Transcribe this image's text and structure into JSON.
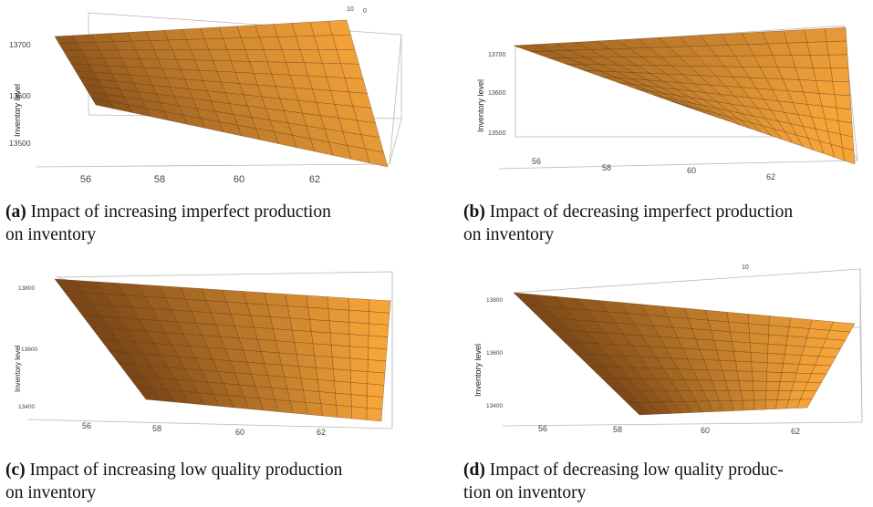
{
  "chart_data": [
    {
      "type": "surface",
      "zlabel": "Inventory level",
      "x_ticks": [
        "56",
        "58",
        "60",
        "62"
      ],
      "z_ticks": [
        "13700",
        "13600",
        "13500"
      ],
      "y_ticks": [
        "10",
        "0"
      ],
      "caption_tag": "(a)",
      "caption_text": "Impact of increasing imperfect production on inventory",
      "caption_lines": [
        "Impact of increasing imperfect production",
        "on inventory"
      ]
    },
    {
      "type": "surface",
      "zlabel": "Inventory level",
      "x_ticks": [
        "56",
        "58",
        "60",
        "62"
      ],
      "z_ticks": [
        "13700",
        "13600",
        "13500"
      ],
      "y_ticks": [],
      "caption_tag": "(b)",
      "caption_text": "Impact of decreasing imperfect production on inventory",
      "caption_lines": [
        "Impact of decreasing imperfect production",
        "on inventory"
      ]
    },
    {
      "type": "surface",
      "zlabel": "Inventory level",
      "x_ticks": [
        "56",
        "58",
        "60",
        "62"
      ],
      "z_ticks": [
        "13800",
        "13600",
        "13400"
      ],
      "y_ticks": [],
      "caption_tag": "(c)",
      "caption_text": "Impact of increasing low quality production on inventory",
      "caption_lines": [
        "Impact of increasing low quality production",
        "on inventory"
      ]
    },
    {
      "type": "surface",
      "zlabel": "Inventory level",
      "x_ticks": [
        "56",
        "58",
        "60",
        "62"
      ],
      "z_ticks": [
        "13800",
        "13600",
        "13400"
      ],
      "y_ticks": [
        "10"
      ],
      "caption_tag": "(d)",
      "caption_text": "Impact of decreasing low quality production on inventory",
      "caption_lines": [
        "Impact of decreasing low quality produc-",
        "tion on inventory"
      ]
    }
  ],
  "colors": {
    "surface_light": "#f5a43a",
    "surface_dark": "#6a3a12",
    "mesh": "#4a2c0c",
    "box": "#b9b9b9"
  }
}
